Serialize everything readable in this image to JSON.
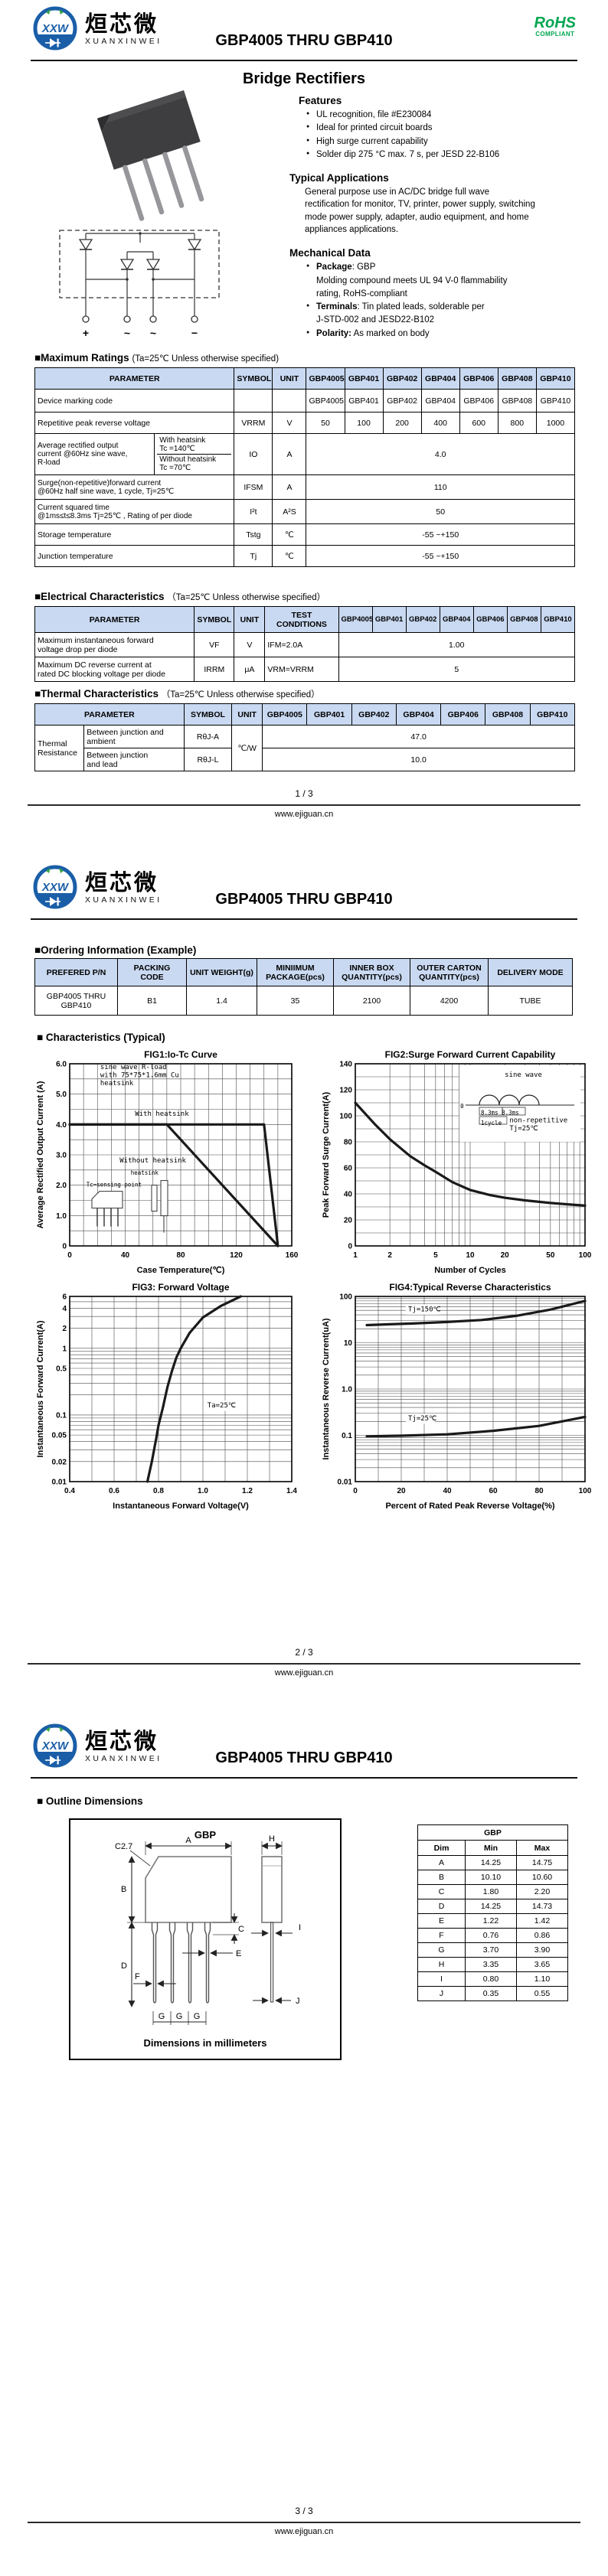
{
  "header": {
    "logo_abbr": "XXW",
    "logo_cn": "烜芯微",
    "logo_en": "XUANXINWEI",
    "title": "GBP4005 THRU GBP410",
    "rohs": "RoHS",
    "compliant": "COMPLIANT"
  },
  "footer": {
    "site": "www.ejiguan.cn",
    "p1": "1 / 3",
    "p2": "2 / 3",
    "p3": "3 / 3"
  },
  "parts": [
    "GBP4005",
    "GBP401",
    "GBP402",
    "GBP404",
    "GBP406",
    "GBP408",
    "GBP410"
  ],
  "page1": {
    "product_title": "Bridge Rectifiers",
    "features": {
      "heading": "Features",
      "items": [
        "UL recognition, file #E230084",
        "Ideal for printed circuit boards",
        "High surge current capability",
        "Solder dip 275 °C max. 7 s, per JESD 22-B106"
      ]
    },
    "applications": {
      "heading": "Typical Applications",
      "text": "General purpose use in AC/DC bridge full wave\nrectification for monitor, TV, printer, power supply, switching\nmode power supply, adapter, audio equipment, and home\nappliances applications."
    },
    "mechanical": {
      "heading": "Mechanical Data",
      "items": [
        {
          "b": "Package",
          "t": ": GBP\nMolding compound meets UL 94 V-0 flammability\nrating, RoHS-compliant"
        },
        {
          "b": "Terminals",
          "t": ": Tin plated leads, solderable  per\nJ-STD-002 and JESD22-B102"
        },
        {
          "b": "Polarity:",
          "t": " As marked on body"
        }
      ]
    },
    "schematic_terminals": [
      "+",
      "~",
      "~",
      "−"
    ],
    "max_ratings": {
      "heading": "■Maximum Ratings",
      "condition": "(Ta=25℃ Unless otherwise specified)",
      "cols": {
        "parameter": "PARAMETER",
        "symbol": "SYMBOL",
        "unit": "UNIT"
      },
      "rows": {
        "marking": {
          "param": "Device marking code"
        },
        "vrrm": {
          "param": "Repetitive peak reverse voltage",
          "symbol": "VRRM",
          "unit": "V",
          "values": [
            "50",
            "100",
            "200",
            "400",
            "600",
            "800",
            "1000"
          ]
        },
        "io": {
          "param": "Average rectified output\ncurrent @60Hz sine wave,\nR-load",
          "sub1": "With heatsink\nTc =140℃",
          "sub2": "Without heatsink\nTc =70℃",
          "symbol": "IO",
          "unit": "A",
          "value": "4.0"
        },
        "ifsm": {
          "param": "Surge(non-repetitive)forward current\n@60Hz half sine wave, 1 cycle, Tj=25℃",
          "symbol": "IFSM",
          "unit": "A",
          "value": "110"
        },
        "i2t": {
          "param": "Current squared time\n@1ms≤t≤8.3ms Tj=25℃ , Rating of per diode",
          "symbol": "I²t",
          "unit": "A²S",
          "value": "50"
        },
        "tstg": {
          "param": "Storage temperature",
          "symbol": "Tstg",
          "unit": "℃",
          "value": "-55 ~+150"
        },
        "tj": {
          "param": "Junction temperature",
          "symbol": "Tj",
          "unit": "℃",
          "value": "-55 ~+150"
        }
      }
    },
    "electrical": {
      "heading": "■Electrical Characteristics",
      "condition": "（Ta=25℃ Unless otherwise specified）",
      "cols": {
        "parameter": "PARAMETER",
        "symbol": "SYMBOL",
        "unit": "UNIT",
        "test": "TEST\nCONDITIONS"
      },
      "rows": {
        "vf": {
          "param": "Maximum instantaneous forward\nvoltage drop per diode",
          "symbol": "VF",
          "unit": "V",
          "test": "IFM=2.0A",
          "value": "1.00"
        },
        "irrm": {
          "param": "Maximum DC reverse current at\nrated DC blocking voltage per diode",
          "symbol": "IRRM",
          "unit": "μA",
          "test": "VRM=VRRM",
          "value": "5"
        }
      }
    },
    "thermal": {
      "heading": "■Thermal Characteristics",
      "condition": "（Ta=25℃ Unless otherwise specified）",
      "cols": {
        "parameter": "PARAMETER",
        "symbol": "SYMBOL",
        "unit": "UNIT"
      },
      "group": "Thermal\nResistance",
      "unit": "℃/W",
      "rows": {
        "rja": {
          "param": "Between junction and\nambient",
          "symbol": "RθJ-A",
          "value": "47.0"
        },
        "rjl": {
          "param": "Between junction\nand lead",
          "symbol": "RθJ-L",
          "value": "10.0"
        }
      }
    }
  },
  "page2": {
    "ordering": {
      "heading": "■Ordering Information (Example)",
      "cols": [
        "PREFERED P/N",
        "PACKING\nCODE",
        "UNIT WEIGHT(g)",
        "MINIIMUM\nPACKAGE(pcs)",
        "INNER BOX\nQUANTITY(pcs)",
        "OUTER CARTON\nQUANTITY(pcs)",
        "DELIVERY MODE"
      ],
      "row": [
        "GBP4005 THRU\nGBP410",
        "B1",
        "1.4",
        "35",
        "2100",
        "4200",
        "TUBE"
      ]
    },
    "characteristics_heading": "■ Characteristics (Typical)"
  },
  "page3": {
    "outline": {
      "heading": "■ Outline Dimensions",
      "drawing_title": "GBP",
      "caption": "Dimensions in millimeters",
      "labels": {
        "A": "A",
        "B": "B",
        "C27": "C2.7",
        "C": "C",
        "D": "D",
        "E": "E",
        "F": "F",
        "G": "G",
        "H": "H",
        "I": "I",
        "J": "J"
      },
      "table": {
        "title": "GBP",
        "cols": [
          "Dim",
          "Min",
          "Max"
        ],
        "rows": [
          [
            "A",
            "14.25",
            "14.75"
          ],
          [
            "B",
            "10.10",
            "10.60"
          ],
          [
            "C",
            "1.80",
            "2.20"
          ],
          [
            "D",
            "14.25",
            "14.73"
          ],
          [
            "E",
            "1.22",
            "1.42"
          ],
          [
            "F",
            "0.76",
            "0.86"
          ],
          [
            "G",
            "3.70",
            "3.90"
          ],
          [
            "H",
            "3.35",
            "3.65"
          ],
          [
            "I",
            "0.80",
            "1.10"
          ],
          [
            "J",
            "0.35",
            "0.55"
          ]
        ]
      }
    }
  },
  "chart_data": [
    {
      "type": "line",
      "title": "FIG1:Io-Tc Curve",
      "xlabel": "Case Temperature(℃)",
      "ylabel": "Average Rectified Output Current (A)",
      "xscale": "linear",
      "yscale": "linear",
      "xlim": [
        0,
        160
      ],
      "ylim": [
        0,
        6
      ],
      "xgrid": {
        "lin": [
          0,
          160,
          10
        ]
      },
      "ygrid": {
        "lin": [
          0,
          6,
          0.5
        ]
      },
      "xticks": [
        [
          0,
          "0"
        ],
        [
          40,
          "40"
        ],
        [
          80,
          "80"
        ],
        [
          120,
          "120"
        ],
        [
          160,
          "160"
        ]
      ],
      "yticks": [
        [
          0,
          "0"
        ],
        [
          1,
          "1.0"
        ],
        [
          2,
          "2.0"
        ],
        [
          3,
          "3.0"
        ],
        [
          4,
          "4.0"
        ],
        [
          5,
          "5.0"
        ],
        [
          6,
          "6.0"
        ]
      ],
      "series": [
        {
          "name": "With heatsink",
          "points": [
            [
              0,
              4
            ],
            [
              140,
              4
            ],
            [
              150,
              0
            ]
          ]
        },
        {
          "name": "Without heatsink",
          "points": [
            [
              0,
              4
            ],
            [
              70,
              4
            ],
            [
              150,
              0
            ]
          ]
        }
      ],
      "annotations": [
        {
          "x": 22,
          "y": 5.82,
          "lines": [
            "sine wave R-load",
            "with 75*75*1.6mm Cu",
            "heatsink"
          ],
          "size": "s"
        },
        {
          "x": 47,
          "y": 4.28,
          "text": "With heatsink",
          "size": "s"
        },
        {
          "x": 36,
          "y": 2.75,
          "text": "Without heatsink",
          "size": "s"
        },
        {
          "x": 12,
          "y": 1.95,
          "text": "Tc=sensing point",
          "size": "xs"
        },
        {
          "x": 44,
          "y": 2.35,
          "text": "heatsink",
          "size": "xs"
        }
      ],
      "inset": "package"
    },
    {
      "type": "line",
      "title": "FIG2:Surge Forward Current Capability",
      "xlabel": "Number of Cycles",
      "ylabel": "Peak Forward Surge Current(A)",
      "xscale": "log",
      "yscale": "linear",
      "xlim": [
        1,
        100
      ],
      "ylim": [
        0,
        140
      ],
      "xgrid": {
        "log": true
      },
      "ygrid": {
        "lin": [
          0,
          140,
          10
        ]
      },
      "xticks": [
        [
          1,
          "1"
        ],
        [
          2,
          "2"
        ],
        [
          5,
          "5"
        ],
        [
          10,
          "10"
        ],
        [
          20,
          "20"
        ],
        [
          50,
          "50"
        ],
        [
          100,
          "100"
        ]
      ],
      "yticks": [
        [
          0,
          "0"
        ],
        [
          20,
          "20"
        ],
        [
          40,
          "40"
        ],
        [
          60,
          "60"
        ],
        [
          80,
          "80"
        ],
        [
          100,
          "100"
        ],
        [
          120,
          "120"
        ],
        [
          140,
          "140"
        ]
      ],
      "series": [
        {
          "name": "IFSM",
          "points": [
            [
              1,
              110
            ],
            [
              1.5,
              93
            ],
            [
              2,
              82
            ],
            [
              3,
              69
            ],
            [
              4,
              62
            ],
            [
              5,
              57
            ],
            [
              7,
              49
            ],
            [
              10,
              43
            ],
            [
              15,
              39
            ],
            [
              20,
              37
            ],
            [
              30,
              35
            ],
            [
              50,
              33
            ],
            [
              70,
              32
            ],
            [
              100,
              31
            ]
          ]
        }
      ],
      "annotations": [
        {
          "x": 20,
          "y": 130,
          "text": "sine wave",
          "size": "s"
        },
        {
          "x": 12.4,
          "y": 101,
          "text": "8.3ms 8.3ms",
          "size": "xs"
        },
        {
          "x": 12.4,
          "y": 93,
          "text": "1cycle",
          "size": "xs"
        },
        {
          "x": 8.2,
          "y": 106,
          "text": "0",
          "size": "xs"
        },
        {
          "x": 22,
          "y": 95,
          "lines": [
            "non-repetitive",
            "Tj=25℃"
          ],
          "size": "s",
          "bg": true
        }
      ],
      "inset": "sine"
    },
    {
      "type": "line",
      "title": "FIG3: Forward Voltage",
      "xlabel": "Instantaneous Forward Voltage(V)",
      "ylabel": "Instantaneous Forward Current(A)",
      "xscale": "linear",
      "yscale": "log",
      "xlim": [
        0.4,
        1.4
      ],
      "ylim": [
        0.01,
        6
      ],
      "xgrid": {
        "lin": [
          0.4,
          1.4,
          0.1
        ]
      },
      "ygrid": {
        "log": true
      },
      "xticks": [
        [
          0.4,
          "0.4"
        ],
        [
          0.6,
          "0.6"
        ],
        [
          0.8,
          "0.8"
        ],
        [
          1.0,
          "1.0"
        ],
        [
          1.2,
          "1.2"
        ],
        [
          1.4,
          "1.4"
        ]
      ],
      "yticks": [
        [
          6,
          "6"
        ],
        [
          4,
          "4"
        ],
        [
          2,
          "2"
        ],
        [
          1,
          "1"
        ],
        [
          0.5,
          "0.5"
        ],
        [
          0.1,
          "0.1"
        ],
        [
          0.05,
          "0.05"
        ],
        [
          0.02,
          "0.02"
        ],
        [
          0.01,
          "0.01"
        ]
      ],
      "series": [
        {
          "name": "VF",
          "points": [
            [
              0.75,
              0.01
            ],
            [
              0.77,
              0.02
            ],
            [
              0.79,
              0.045
            ],
            [
              0.8,
              0.07
            ],
            [
              0.82,
              0.13
            ],
            [
              0.84,
              0.26
            ],
            [
              0.86,
              0.45
            ],
            [
              0.88,
              0.72
            ],
            [
              0.9,
              1.0
            ],
            [
              0.94,
              1.7
            ],
            [
              1.0,
              2.9
            ],
            [
              1.08,
              4.3
            ],
            [
              1.17,
              6.0
            ]
          ]
        }
      ],
      "annotations": [
        {
          "x": 1.02,
          "y": 0.13,
          "text": "Ta=25℃",
          "size": "s",
          "bg": true
        }
      ]
    },
    {
      "type": "line",
      "title": "FIG4:Typical Reverse Characteristics",
      "xlabel": "Percent of Rated Peak Reverse Voltage(%)",
      "ylabel": "Instantaneous Reverse Current(uA)",
      "xscale": "linear",
      "yscale": "log",
      "xlim": [
        0,
        100
      ],
      "ylim": [
        0.01,
        100
      ],
      "xgrid": {
        "lin": [
          0,
          100,
          10
        ]
      },
      "ygrid": {
        "log": true
      },
      "xticks": [
        [
          0,
          "0"
        ],
        [
          20,
          "20"
        ],
        [
          40,
          "40"
        ],
        [
          60,
          "60"
        ],
        [
          80,
          "80"
        ],
        [
          100,
          "100"
        ]
      ],
      "yticks": [
        [
          100,
          "100"
        ],
        [
          10,
          "10"
        ],
        [
          1,
          "1.0"
        ],
        [
          0.1,
          "0.1"
        ],
        [
          0.01,
          "0.01"
        ]
      ],
      "series": [
        {
          "name": "Tj=150℃",
          "points": [
            [
              5,
              24
            ],
            [
              15,
              25
            ],
            [
              25,
              26
            ],
            [
              40,
              28
            ],
            [
              55,
              31
            ],
            [
              70,
              38
            ],
            [
              85,
              52
            ],
            [
              100,
              80
            ]
          ]
        },
        {
          "name": "Tj=25℃",
          "points": [
            [
              5,
              0.095
            ],
            [
              20,
              0.098
            ],
            [
              40,
              0.105
            ],
            [
              60,
              0.125
            ],
            [
              80,
              0.16
            ],
            [
              100,
              0.25
            ]
          ]
        }
      ],
      "annotations": [
        {
          "x": 23,
          "y": 48,
          "text": "Tj=150℃",
          "size": "s",
          "bg": true
        },
        {
          "x": 23,
          "y": 0.21,
          "text": "Tj=25℃",
          "size": "s",
          "bg": true
        }
      ]
    }
  ]
}
